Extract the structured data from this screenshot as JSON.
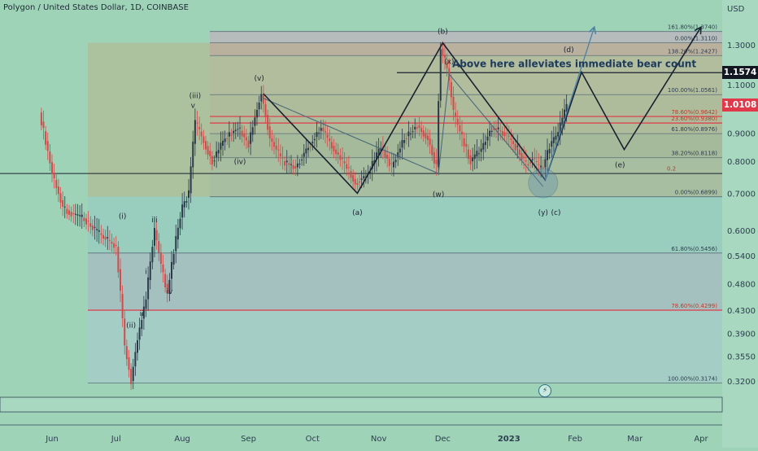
{
  "header": {
    "symbol_title": "Polygon / United States Dollar, 1D, COINBASE",
    "currency_label": "USD"
  },
  "colors": {
    "background": "#9fd3b7",
    "candle_up": "#2a3a4a",
    "candle_down": "#d24a4a",
    "price_tag_black": "#131722",
    "price_tag_red": "#e0394a",
    "wave_line": "#1a2230",
    "projection_line": "#4a82a8"
  },
  "chart_data": {
    "type": "candlestick",
    "title": "Polygon / United States Dollar, 1D, COINBASE",
    "x_axis": {
      "labels": [
        "Jun",
        "Jul",
        "Aug",
        "Sep",
        "Oct",
        "Nov",
        "Dec",
        "2023",
        "Feb",
        "Mar",
        "Apr"
      ],
      "range": [
        "2022-05-26",
        "2023-04-08"
      ]
    },
    "y_axis": {
      "scale": "log",
      "range": [
        0.3,
        1.45
      ],
      "currency": "USD",
      "tick_labels": [
        "1.3000",
        "1.1000",
        "0.9000",
        "0.8000",
        "0.7000",
        "0.6000",
        "0.5400",
        "0.4800",
        "0.4300",
        "0.3900",
        "0.3550",
        "0.3200"
      ],
      "tick_values": [
        1.3,
        1.1,
        0.9,
        0.8,
        0.7,
        0.6,
        0.54,
        0.48,
        0.43,
        0.39,
        0.355,
        0.32
      ]
    },
    "price_tags": [
      {
        "value": 1.1574,
        "label": "1.1574",
        "style": "black"
      },
      {
        "value": 1.0108,
        "label": "1.0108",
        "style": "red"
      }
    ],
    "series": [
      {
        "kind": "candles",
        "points": [
          {
            "date": "2022-05-27",
            "value": 0.98
          },
          {
            "date": "2022-06-02",
            "value": 0.76
          },
          {
            "date": "2022-06-07",
            "value": 0.66
          },
          {
            "date": "2022-06-12",
            "value": 0.64
          },
          {
            "date": "2022-06-17",
            "value": 0.63
          },
          {
            "date": "2022-06-22",
            "value": 0.6
          },
          {
            "date": "2022-06-27",
            "value": 0.58
          },
          {
            "date": "2022-07-02",
            "value": 0.56
          },
          {
            "date": "2022-07-04",
            "value": 0.46
          },
          {
            "date": "2022-07-06",
            "value": 0.37
          },
          {
            "date": "2022-07-09",
            "value": 0.32
          },
          {
            "date": "2022-07-12",
            "value": 0.38
          },
          {
            "date": "2022-07-16",
            "value": 0.45
          },
          {
            "date": "2022-07-20",
            "value": 0.6
          },
          {
            "date": "2022-07-23",
            "value": 0.52
          },
          {
            "date": "2022-07-26",
            "value": 0.46
          },
          {
            "date": "2022-07-29",
            "value": 0.55
          },
          {
            "date": "2022-08-02",
            "value": 0.66
          },
          {
            "date": "2022-08-05",
            "value": 0.7
          },
          {
            "date": "2022-08-08",
            "value": 0.94
          },
          {
            "date": "2022-08-12",
            "value": 0.87
          },
          {
            "date": "2022-08-16",
            "value": 0.8
          },
          {
            "date": "2022-08-22",
            "value": 0.88
          },
          {
            "date": "2022-08-28",
            "value": 0.92
          },
          {
            "date": "2022-09-02",
            "value": 0.86
          },
          {
            "date": "2022-09-08",
            "value": 1.06
          },
          {
            "date": "2022-09-12",
            "value": 0.88
          },
          {
            "date": "2022-09-18",
            "value": 0.8
          },
          {
            "date": "2022-09-24",
            "value": 0.78
          },
          {
            "date": "2022-09-30",
            "value": 0.85
          },
          {
            "date": "2022-10-06",
            "value": 0.92
          },
          {
            "date": "2022-10-12",
            "value": 0.84
          },
          {
            "date": "2022-10-18",
            "value": 0.78
          },
          {
            "date": "2022-10-22",
            "value": 0.73
          },
          {
            "date": "2022-10-28",
            "value": 0.76
          },
          {
            "date": "2022-11-03",
            "value": 0.85
          },
          {
            "date": "2022-11-08",
            "value": 0.78
          },
          {
            "date": "2022-11-14",
            "value": 0.88
          },
          {
            "date": "2022-11-20",
            "value": 0.93
          },
          {
            "date": "2022-11-25",
            "value": 0.88
          },
          {
            "date": "2022-11-29",
            "value": 0.78
          },
          {
            "date": "2022-12-01",
            "value": 1.28
          },
          {
            "date": "2022-12-04",
            "value": 1.18
          },
          {
            "date": "2022-12-07",
            "value": 0.98
          },
          {
            "date": "2022-12-11",
            "value": 0.88
          },
          {
            "date": "2022-12-15",
            "value": 0.8
          },
          {
            "date": "2022-12-20",
            "value": 0.84
          },
          {
            "date": "2022-12-25",
            "value": 0.92
          },
          {
            "date": "2022-12-31",
            "value": 0.9
          },
          {
            "date": "2023-01-06",
            "value": 0.84
          },
          {
            "date": "2023-01-10",
            "value": 0.79
          },
          {
            "date": "2023-01-13",
            "value": 0.81
          },
          {
            "date": "2023-01-16",
            "value": 0.78
          },
          {
            "date": "2023-01-18",
            "value": 0.78
          },
          {
            "date": "2023-01-21",
            "value": 0.85
          },
          {
            "date": "2023-01-25",
            "value": 0.9
          },
          {
            "date": "2023-01-29",
            "value": 1.01
          }
        ]
      }
    ],
    "fib_levels": [
      {
        "label": "161.80%(1.3740)",
        "value": 1.374
      },
      {
        "label": "0.00%(1.3110)",
        "value": 1.311
      },
      {
        "label": "138.20%(1.2427)",
        "value": 1.2427
      },
      {
        "label": "100.00%(1.0561)",
        "value": 1.0561
      },
      {
        "label": "78.60%(0.9642)",
        "value": 0.9642
      },
      {
        "label": "23.60%(0.9380)",
        "value": 0.938
      },
      {
        "label": "61.80%(0.8976)",
        "value": 0.8976
      },
      {
        "label": "38.20%(0.8118)",
        "value": 0.8118
      },
      {
        "label": "0.00%(0.6899)",
        "value": 0.6899
      },
      {
        "label": "61.80%(0.5456)",
        "value": 0.5456
      },
      {
        "label": "78.60%(0.4299)",
        "value": 0.4299
      },
      {
        "label": "100.00%(0.3174)",
        "value": 0.3174
      }
    ],
    "fib_small_label": "0.2",
    "annotations": [
      {
        "text": "Above here alleviates immediate bear count",
        "date": "2022-12-13",
        "value": 1.2
      }
    ],
    "wave_labels": [
      {
        "text": "(v)",
        "date": "2022-09-06",
        "value": 1.12
      },
      {
        "text": "(iii)",
        "date": "2022-08-07",
        "value": 1.04
      },
      {
        "text": "v",
        "date": "2022-08-06",
        "value": 1.0
      },
      {
        "text": "(iv)",
        "date": "2022-08-28",
        "value": 0.79
      },
      {
        "text": "(i)",
        "date": "2022-07-04",
        "value": 0.63
      },
      {
        "text": "iii",
        "date": "2022-07-19",
        "value": 0.62
      },
      {
        "text": "i",
        "date": "2022-07-15",
        "value": 0.5
      },
      {
        "text": "iv",
        "date": "2022-07-26",
        "value": 0.46
      },
      {
        "text": "ii",
        "date": "2022-07-13",
        "value": 0.42
      },
      {
        "text": "(ii)",
        "date": "2022-07-08",
        "value": 0.4
      },
      {
        "text": "(a)",
        "date": "2022-10-22",
        "value": 0.64
      },
      {
        "text": "(b)",
        "date": "2022-12-01",
        "value": 1.36
      },
      {
        "text": "(x)",
        "date": "2022-12-04",
        "value": 1.2
      },
      {
        "text": "(w)",
        "date": "2022-11-29",
        "value": 0.69
      },
      {
        "text": "(y)",
        "date": "2023-01-17",
        "value": 0.64
      },
      {
        "text": "(c)",
        "date": "2023-01-23",
        "value": 0.64
      },
      {
        "text": "(d)",
        "date": "2023-01-29",
        "value": 1.26
      },
      {
        "text": "(e)",
        "date": "2023-02-22",
        "value": 0.78
      }
    ],
    "wave_path": [
      {
        "date": "2022-09-08",
        "value": 1.06
      },
      {
        "date": "2022-10-22",
        "value": 0.7
      },
      {
        "date": "2022-12-01",
        "value": 1.31
      },
      {
        "date": "2023-01-18",
        "value": 0.74
      },
      {
        "date": "2023-02-04",
        "value": 1.16
      },
      {
        "date": "2023-02-24",
        "value": 0.84
      },
      {
        "date": "2023-04-01",
        "value": 1.4
      }
    ],
    "projection_path": [
      {
        "date": "2023-01-18",
        "value": 0.74
      },
      {
        "date": "2023-02-10",
        "value": 1.4
      }
    ],
    "correction_path": [
      {
        "date": "2022-09-08",
        "value": 1.04
      },
      {
        "date": "2022-11-29",
        "value": 0.76
      },
      {
        "date": "2022-12-04",
        "value": 1.15
      },
      {
        "date": "2023-01-17",
        "value": 0.72
      }
    ]
  }
}
